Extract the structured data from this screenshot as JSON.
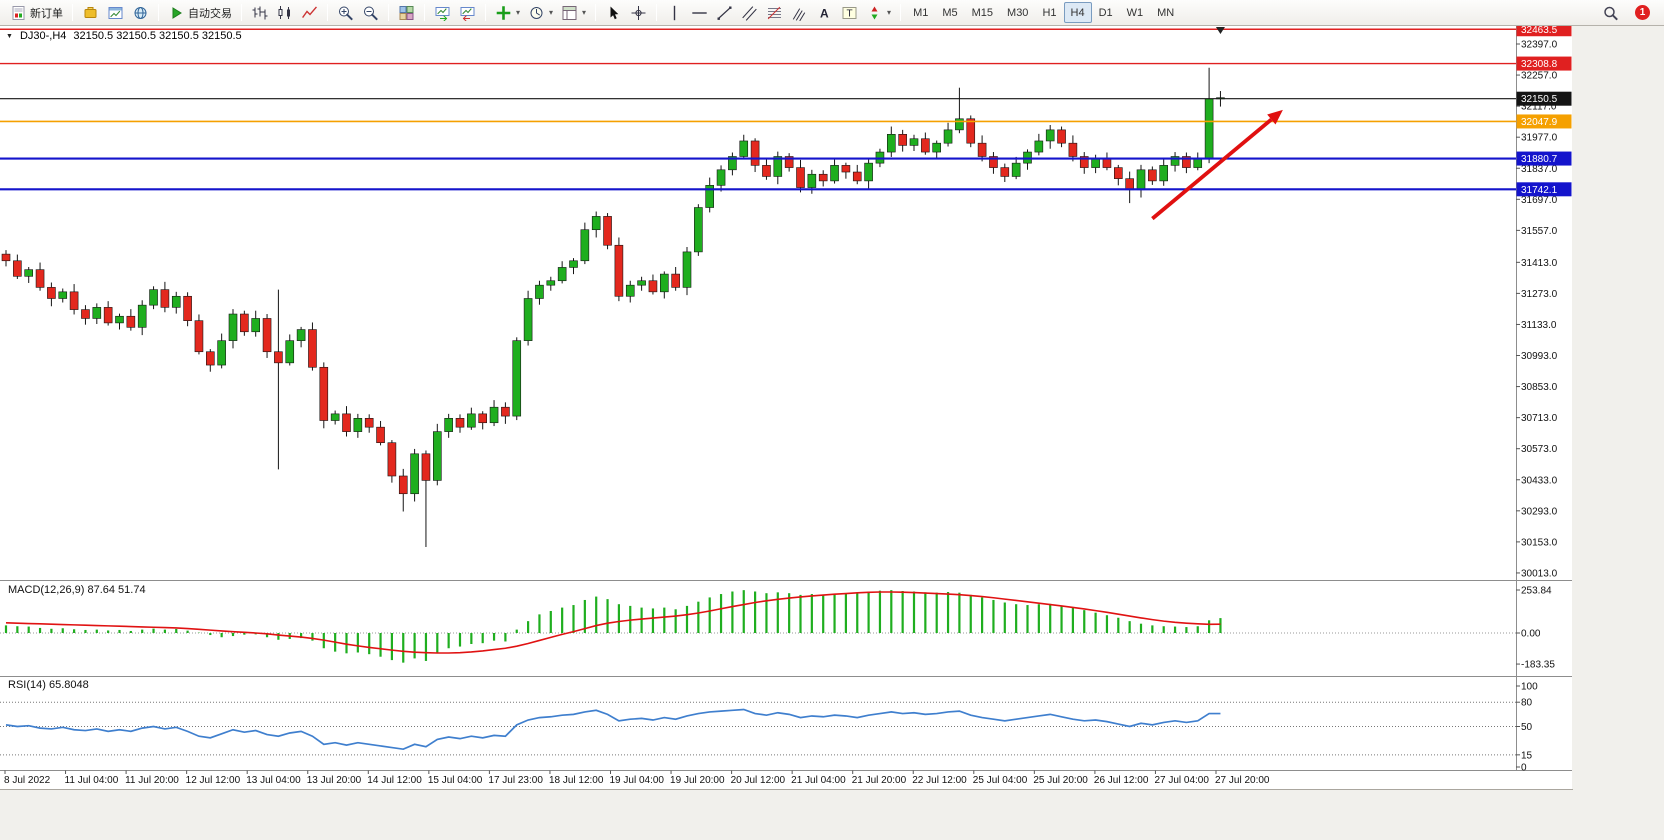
{
  "toolbar": {
    "groups": [
      {
        "name": "order-group",
        "items": [
          {
            "name": "new-order-button",
            "icon": "new-order",
            "label": "新订单"
          }
        ]
      },
      {
        "name": "apps-group",
        "items": [
          {
            "name": "metaeditor-button",
            "icon": "gold-box"
          },
          {
            "name": "charts-button",
            "icon": "chart-window"
          },
          {
            "name": "strategy-tester-button",
            "icon": "globe"
          }
        ]
      },
      {
        "name": "autotrading-group",
        "items": [
          {
            "name": "autotrading-button",
            "icon": "play",
            "label": "自动交易"
          }
        ]
      },
      {
        "name": "chart-type-group",
        "items": [
          {
            "name": "bar-chart-button",
            "icon": "bars"
          },
          {
            "name": "candlestick-chart-button",
            "icon": "candles"
          },
          {
            "name": "line-chart-button",
            "icon": "line-chart"
          }
        ]
      },
      {
        "name": "zoom-group",
        "items": [
          {
            "name": "zoom-in-button",
            "icon": "zoom-in"
          },
          {
            "name": "zoom-out-button",
            "icon": "zoom-out"
          }
        ]
      },
      {
        "name": "windows-group",
        "items": [
          {
            "name": "tile-windows-button",
            "icon": "tile-grid"
          }
        ]
      },
      {
        "name": "scroll-group",
        "items": [
          {
            "name": "auto-scroll-button",
            "icon": "auto-scroll"
          },
          {
            "name": "chart-shift-button",
            "icon": "chart-shift"
          }
        ]
      },
      {
        "name": "insert-group",
        "items": [
          {
            "name": "indicators-button",
            "icon": "green-plus",
            "caret": true
          },
          {
            "name": "periods-button",
            "icon": "clock",
            "caret": true
          },
          {
            "name": "templates-button",
            "icon": "template",
            "caret": true
          }
        ]
      },
      {
        "name": "pointer-group",
        "items": [
          {
            "name": "cursor-tool-button",
            "icon": "cursor"
          },
          {
            "name": "crosshair-tool-button",
            "icon": "crosshair"
          }
        ]
      },
      {
        "name": "draw-group",
        "items": [
          {
            "name": "vertical-line-button",
            "icon": "vline"
          },
          {
            "name": "horizontal-line-button",
            "icon": "hline"
          },
          {
            "name": "trendline-button",
            "icon": "trendline"
          },
          {
            "name": "channel-button",
            "icon": "channel"
          },
          {
            "name": "fibonacci-button",
            "icon": "fibo"
          },
          {
            "name": "pitchfork-button",
            "icon": "pitchfork"
          },
          {
            "name": "text-button",
            "icon": "text-a"
          },
          {
            "name": "text-label-button",
            "icon": "text-label"
          },
          {
            "name": "arrows-button",
            "icon": "arrow-shapes",
            "caret": true
          }
        ]
      }
    ],
    "timeframes": [
      "M1",
      "M5",
      "M15",
      "M30",
      "H1",
      "H4",
      "D1",
      "W1",
      "MN"
    ],
    "active_timeframe": "H4",
    "notification_count": "1"
  },
  "colors": {
    "candle_up": "#1fae1f",
    "candle_down": "#e3281e",
    "wick": "#151515",
    "macd_hist": "#1fae1f",
    "macd_signal": "#e01212",
    "rsi_line": "#3f7fce",
    "arrow": "#e01010",
    "axis_text": "#111111",
    "badge_text": "#ffffff"
  },
  "chart_data": {
    "type": "candlestick+indicators",
    "symbol": "DJ30-",
    "period": "H4",
    "symbol_period": "DJ30-,H4",
    "ohlc_text": "32150.5 32150.5 32150.5 32150.5",
    "price_axis_labels": [
      "32397.0",
      "32257.0",
      "32117.0",
      "31977.0",
      "31837.0",
      "31697.0",
      "31557.0",
      "31413.0",
      "31273.0",
      "31133.0",
      "30993.0",
      "30853.0",
      "30713.0",
      "30573.0",
      "30433.0",
      "30293.0",
      "30153.0",
      "30013.0"
    ],
    "levels": [
      {
        "price": 32463.5,
        "badge": "32463.5",
        "color": "#e02020",
        "width": 1.4
      },
      {
        "price": 32308.8,
        "badge": "32308.8",
        "color": "#e02020",
        "width": 1.4
      },
      {
        "price": 32150.5,
        "badge": "32150.5",
        "color": "#141414",
        "width": 1.1
      },
      {
        "price": 32047.9,
        "badge": "32047.9",
        "color": "#f5a000",
        "width": 1.6
      },
      {
        "price": 31880.7,
        "badge": "31880.7",
        "color": "#1414cc",
        "width": 2.2
      },
      {
        "price": 31742.1,
        "badge": "31742.1",
        "color": "#1414cc",
        "width": 2.2
      }
    ],
    "time_labels": [
      "8 Jul 2022",
      "11 Jul 04:00",
      "11 Jul 20:00",
      "12 Jul 12:00",
      "13 Jul 04:00",
      "13 Jul 20:00",
      "14 Jul 12:00",
      "15 Jul 04:00",
      "17 Jul 23:00",
      "18 Jul 12:00",
      "19 Jul 04:00",
      "19 Jul 20:00",
      "20 Jul 12:00",
      "21 Jul 04:00",
      "21 Jul 20:00",
      "22 Jul 12:00",
      "25 Jul 04:00",
      "25 Jul 20:00",
      "26 Jul 12:00",
      "27 Jul 04:00",
      "27 Jul 20:00"
    ],
    "candles": [
      [
        31450,
        31468,
        31395,
        31420
      ],
      [
        31420,
        31448,
        31338,
        31350
      ],
      [
        31350,
        31392,
        31320,
        31380
      ],
      [
        31380,
        31412,
        31285,
        31300
      ],
      [
        31300,
        31322,
        31215,
        31250
      ],
      [
        31250,
        31295,
        31232,
        31280
      ],
      [
        31280,
        31315,
        31178,
        31200
      ],
      [
        31200,
        31220,
        31132,
        31160
      ],
      [
        31160,
        31228,
        31135,
        31210
      ],
      [
        31210,
        31238,
        31128,
        31140
      ],
      [
        31140,
        31182,
        31110,
        31170
      ],
      [
        31170,
        31202,
        31105,
        31120
      ],
      [
        31120,
        31242,
        31085,
        31220
      ],
      [
        31220,
        31305,
        31202,
        31290
      ],
      [
        31290,
        31325,
        31188,
        31210
      ],
      [
        31210,
        31280,
        31182,
        31260
      ],
      [
        31260,
        31278,
        31125,
        31150
      ],
      [
        31150,
        31178,
        30998,
        31010
      ],
      [
        31010,
        31022,
        30920,
        30950
      ],
      [
        30950,
        31092,
        30935,
        31060
      ],
      [
        31060,
        31202,
        31025,
        31180
      ],
      [
        31180,
        31195,
        31082,
        31100
      ],
      [
        31100,
        31195,
        31078,
        31160
      ],
      [
        31160,
        31180,
        30982,
        31010
      ],
      [
        31010,
        31290,
        30480,
        30960
      ],
      [
        30960,
        31088,
        30948,
        31060
      ],
      [
        31060,
        31122,
        31030,
        31110
      ],
      [
        31110,
        31142,
        30925,
        30940
      ],
      [
        30940,
        30962,
        30665,
        30700
      ],
      [
        30700,
        30745,
        30682,
        30730
      ],
      [
        30730,
        30765,
        30628,
        30650
      ],
      [
        30650,
        30730,
        30622,
        30710
      ],
      [
        30710,
        30728,
        30645,
        30670
      ],
      [
        30670,
        30698,
        30588,
        30600
      ],
      [
        30600,
        30612,
        30420,
        30450
      ],
      [
        30450,
        30482,
        30290,
        30370
      ],
      [
        30370,
        30572,
        30335,
        30550
      ],
      [
        30550,
        30565,
        30130,
        30430
      ],
      [
        30430,
        30685,
        30408,
        30650
      ],
      [
        30650,
        30730,
        30622,
        30710
      ],
      [
        30710,
        30728,
        30645,
        30670
      ],
      [
        30670,
        30758,
        30658,
        30730
      ],
      [
        30730,
        30742,
        30660,
        30690
      ],
      [
        30690,
        30792,
        30675,
        30760
      ],
      [
        30760,
        30782,
        30685,
        30720
      ],
      [
        30720,
        31075,
        30702,
        31060
      ],
      [
        31060,
        31285,
        31038,
        31250
      ],
      [
        31250,
        31330,
        31222,
        31310
      ],
      [
        31310,
        31348,
        31285,
        31330
      ],
      [
        31330,
        31418,
        31318,
        31390
      ],
      [
        31390,
        31432,
        31360,
        31420
      ],
      [
        31420,
        31592,
        31405,
        31560
      ],
      [
        31560,
        31642,
        31525,
        31620
      ],
      [
        31620,
        31635,
        31472,
        31490
      ],
      [
        31490,
        31525,
        31238,
        31260
      ],
      [
        31260,
        31330,
        31232,
        31310
      ],
      [
        31310,
        31348,
        31285,
        31330
      ],
      [
        31330,
        31358,
        31268,
        31280
      ],
      [
        31280,
        31372,
        31250,
        31360
      ],
      [
        31360,
        31392,
        31285,
        31300
      ],
      [
        31300,
        31482,
        31265,
        31460
      ],
      [
        31460,
        31675,
        31442,
        31660
      ],
      [
        31660,
        31795,
        31638,
        31760
      ],
      [
        31760,
        31850,
        31732,
        31830
      ],
      [
        31830,
        31908,
        31805,
        31890
      ],
      [
        31890,
        31988,
        31878,
        31960
      ],
      [
        31960,
        31972,
        31820,
        31850
      ],
      [
        31850,
        31882,
        31785,
        31800
      ],
      [
        31800,
        31912,
        31765,
        31890
      ],
      [
        31890,
        31905,
        31822,
        31840
      ],
      [
        31840,
        31875,
        31728,
        31750
      ],
      [
        31750,
        31830,
        31722,
        31810
      ],
      [
        31810,
        31828,
        31755,
        31780
      ],
      [
        31780,
        31878,
        31768,
        31850
      ],
      [
        31850,
        31862,
        31790,
        31820
      ],
      [
        31820,
        31852,
        31765,
        31780
      ],
      [
        31780,
        31882,
        31745,
        31860
      ],
      [
        31860,
        31925,
        31842,
        31910
      ],
      [
        31910,
        32025,
        31888,
        31990
      ],
      [
        31990,
        32010,
        31912,
        31940
      ],
      [
        31940,
        31988,
        31915,
        31970
      ],
      [
        31970,
        31998,
        31898,
        31910
      ],
      [
        31910,
        31962,
        31880,
        31950
      ],
      [
        31950,
        32042,
        31935,
        32010
      ],
      [
        32010,
        32200,
        31995,
        32060
      ],
      [
        32060,
        32075,
        31932,
        31950
      ],
      [
        31950,
        31985,
        31868,
        31890
      ],
      [
        31890,
        31910,
        31812,
        31840
      ],
      [
        31840,
        31858,
        31775,
        31800
      ],
      [
        31800,
        31888,
        31788,
        31860
      ],
      [
        31860,
        31922,
        31830,
        31910
      ],
      [
        31910,
        31992,
        31895,
        31960
      ],
      [
        31960,
        32032,
        31925,
        32010
      ],
      [
        32010,
        32025,
        31932,
        31950
      ],
      [
        31950,
        31985,
        31868,
        31890
      ],
      [
        31890,
        31910,
        31812,
        31840
      ],
      [
        31840,
        31898,
        31815,
        31880
      ],
      [
        31880,
        31908,
        31828,
        31840
      ],
      [
        31840,
        31852,
        31760,
        31790
      ],
      [
        31790,
        31822,
        31680,
        31740
      ],
      [
        31740,
        31852,
        31705,
        31830
      ],
      [
        31830,
        31845,
        31762,
        31780
      ],
      [
        31780,
        31885,
        31758,
        31850
      ],
      [
        31850,
        31910,
        31822,
        31890
      ],
      [
        31890,
        31908,
        31815,
        31840
      ],
      [
        31840,
        31908,
        31828,
        31880
      ],
      [
        31880,
        32290,
        31860,
        32150
      ],
      [
        32150,
        32185,
        32115,
        32155
      ]
    ],
    "macd": {
      "label": "MACD(12,26,9)",
      "value": "87.64",
      "signal_value": "51.74",
      "axis": [
        "253.84",
        "0.00",
        "-183.35"
      ],
      "hist": [
        45,
        40,
        38,
        30,
        25,
        28,
        22,
        18,
        20,
        15,
        18,
        12,
        20,
        26,
        20,
        24,
        14,
        2,
        -12,
        -25,
        -18,
        -10,
        -8,
        -25,
        -40,
        -35,
        -30,
        -45,
        -90,
        -110,
        -120,
        -115,
        -125,
        -140,
        -160,
        -175,
        -150,
        -165,
        -120,
        -90,
        -80,
        -65,
        -60,
        -45,
        -50,
        20,
        70,
        110,
        130,
        150,
        165,
        195,
        215,
        200,
        170,
        160,
        150,
        145,
        150,
        140,
        160,
        185,
        210,
        230,
        245,
        253,
        245,
        235,
        240,
        235,
        225,
        230,
        225,
        230,
        235,
        240,
        245,
        250,
        253,
        248,
        245,
        240,
        238,
        242,
        238,
        225,
        210,
        195,
        180,
        170,
        165,
        170,
        172,
        160,
        148,
        135,
        120,
        105,
        90,
        70,
        55,
        45,
        40,
        38,
        35,
        40,
        75,
        88
      ],
      "signal": [
        60,
        58,
        56,
        54,
        52,
        50,
        48,
        46,
        44,
        42,
        40,
        38,
        36,
        34,
        32,
        30,
        26,
        22,
        17,
        12,
        8,
        4,
        0,
        -5,
        -12,
        -18,
        -24,
        -32,
        -42,
        -54,
        -66,
        -76,
        -85,
        -93,
        -101,
        -108,
        -113,
        -116,
        -118,
        -118,
        -116,
        -112,
        -106,
        -98,
        -90,
        -78,
        -62,
        -44,
        -26,
        -8,
        8,
        26,
        44,
        58,
        68,
        76,
        82,
        88,
        94,
        100,
        108,
        118,
        130,
        143,
        156,
        168,
        180,
        190,
        199,
        206,
        213,
        219,
        224,
        229,
        233,
        237,
        240,
        242,
        242,
        241,
        239,
        236,
        233,
        230,
        226,
        221,
        215,
        208,
        200,
        192,
        184,
        176,
        168,
        160,
        151,
        142,
        132,
        122,
        111,
        100,
        89,
        79,
        70,
        63,
        58,
        54,
        51,
        52
      ]
    },
    "rsi": {
      "label": "RSI(14)",
      "value": "65.8048",
      "axis": [
        "100",
        "80",
        "50",
        "15",
        "0"
      ],
      "dashed_levels": [
        80,
        50,
        15
      ],
      "values": [
        52,
        50,
        51,
        48,
        47,
        49,
        46,
        45,
        47,
        44,
        46,
        44,
        48,
        50,
        47,
        49,
        44,
        38,
        36,
        41,
        46,
        43,
        45,
        40,
        38,
        42,
        44,
        38,
        28,
        30,
        27,
        30,
        28,
        26,
        24,
        22,
        28,
        25,
        34,
        37,
        35,
        38,
        36,
        39,
        38,
        52,
        58,
        61,
        62,
        64,
        65,
        68,
        70,
        65,
        57,
        59,
        60,
        58,
        61,
        59,
        63,
        66,
        68,
        69,
        70,
        71,
        66,
        64,
        67,
        65,
        61,
        63,
        62,
        64,
        63,
        61,
        64,
        66,
        68,
        66,
        67,
        65,
        66,
        68,
        69,
        64,
        61,
        59,
        57,
        59,
        61,
        63,
        65,
        62,
        59,
        57,
        58,
        56,
        53,
        50,
        54,
        52,
        55,
        57,
        55,
        57,
        66,
        66
      ]
    },
    "arrow": {
      "from_index": 101,
      "from_price": 31610,
      "to_index": 112.5,
      "to_price": 32100,
      "color": "#e01010"
    },
    "shift_marker_index": 107
  }
}
